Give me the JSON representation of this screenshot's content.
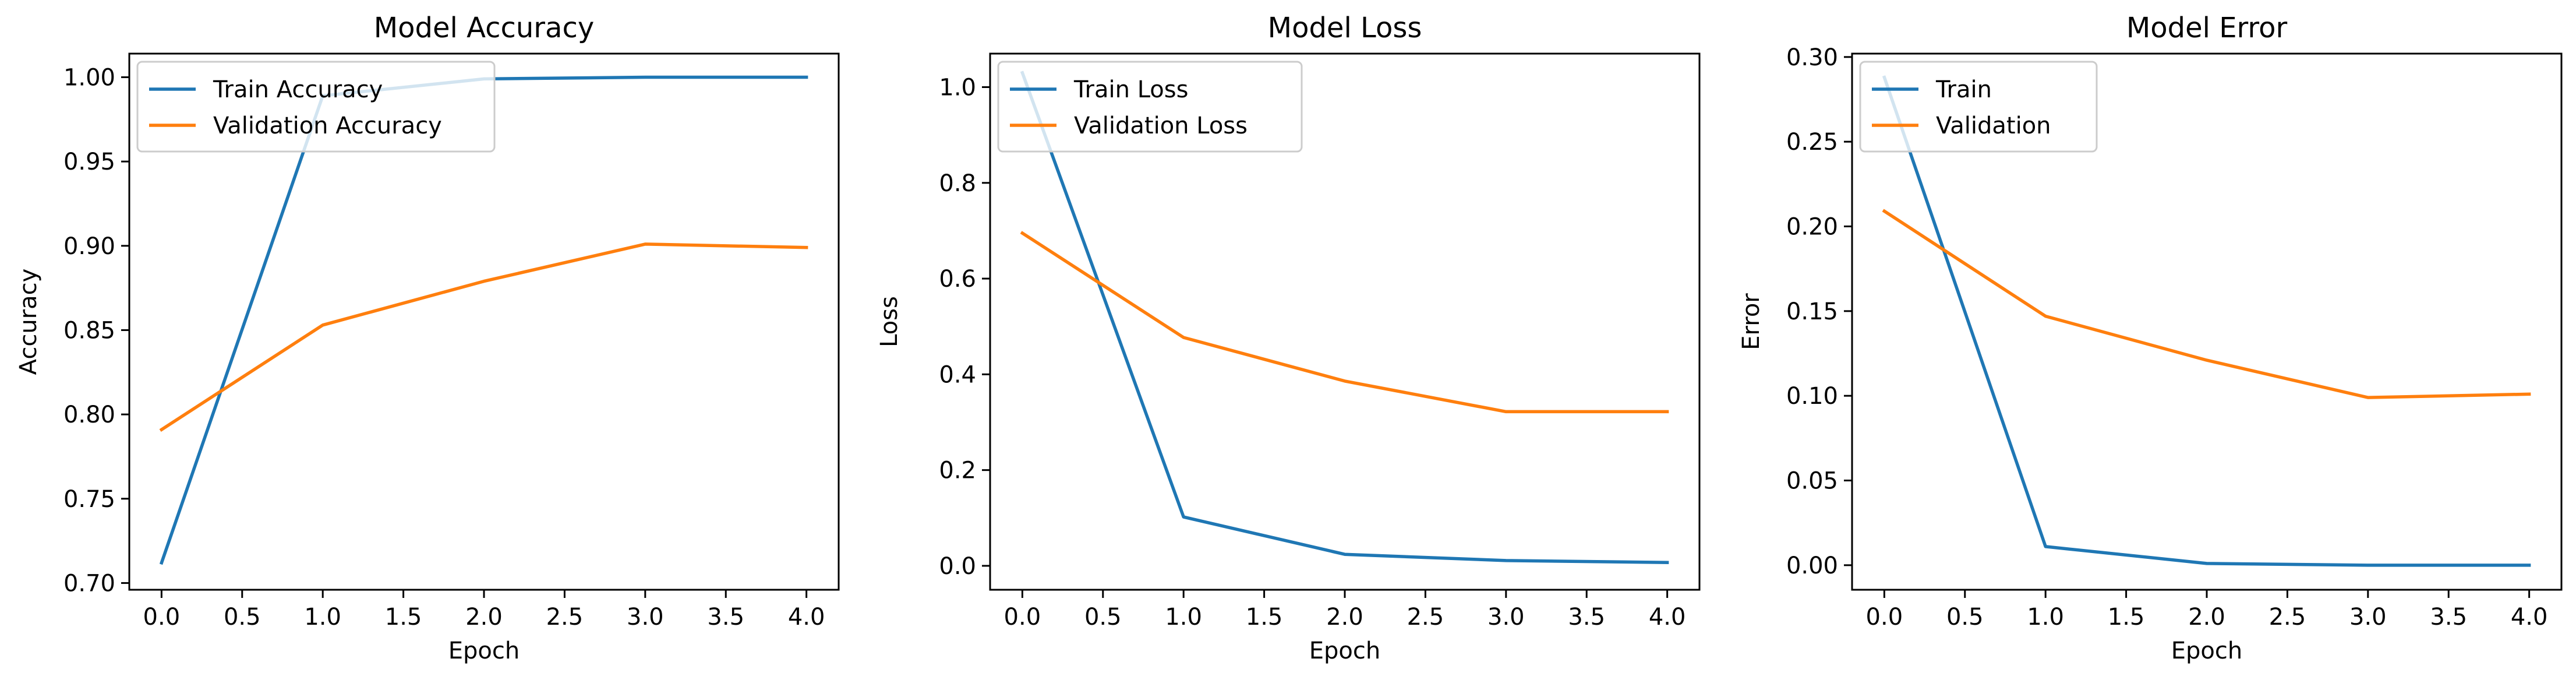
{
  "chart_data": [
    {
      "type": "line",
      "title": "Model Accuracy",
      "xlabel": "Epoch",
      "ylabel": "Accuracy",
      "xlim": [
        -0.2,
        4.2
      ],
      "ylim": [
        0.696,
        1.014
      ],
      "x_ticks": [
        "0.0",
        "0.5",
        "1.0",
        "1.5",
        "2.0",
        "2.5",
        "3.0",
        "3.5",
        "4.0"
      ],
      "y_ticks": [
        "0.70",
        "0.75",
        "0.80",
        "0.85",
        "0.90",
        "0.95",
        "1.00"
      ],
      "legend_position": "top-left",
      "x": [
        0,
        1,
        2,
        3,
        4
      ],
      "series": [
        {
          "name": "Train Accuracy",
          "color": "#1f77b4",
          "values": [
            0.712,
            0.989,
            0.999,
            1.0,
            1.0
          ]
        },
        {
          "name": "Validation Accuracy",
          "color": "#ff7f0e",
          "values": [
            0.791,
            0.853,
            0.879,
            0.901,
            0.899
          ]
        }
      ]
    },
    {
      "type": "line",
      "title": "Model Loss",
      "xlabel": "Epoch",
      "ylabel": "Loss",
      "xlim": [
        -0.2,
        4.2
      ],
      "ylim": [
        -0.05,
        1.07
      ],
      "x_ticks": [
        "0.0",
        "0.5",
        "1.0",
        "1.5",
        "2.0",
        "2.5",
        "3.0",
        "3.5",
        "4.0"
      ],
      "y_ticks": [
        "0.0",
        "0.2",
        "0.4",
        "0.6",
        "0.8",
        "1.0"
      ],
      "legend_position": "top-left",
      "x": [
        0,
        1,
        2,
        3,
        4
      ],
      "series": [
        {
          "name": "Train Loss",
          "color": "#1f77b4",
          "values": [
            1.03,
            0.102,
            0.024,
            0.011,
            0.007
          ]
        },
        {
          "name": "Validation Loss",
          "color": "#ff7f0e",
          "values": [
            0.695,
            0.477,
            0.386,
            0.322,
            0.322
          ]
        }
      ]
    },
    {
      "type": "line",
      "title": "Model Error",
      "xlabel": "Epoch",
      "ylabel": "Error",
      "xlim": [
        -0.2,
        4.2
      ],
      "ylim": [
        -0.0145,
        0.302
      ],
      "x_ticks": [
        "0.0",
        "0.5",
        "1.0",
        "1.5",
        "2.0",
        "2.5",
        "3.0",
        "3.5",
        "4.0"
      ],
      "y_ticks": [
        "0.00",
        "0.05",
        "0.10",
        "0.15",
        "0.20",
        "0.25",
        "0.30"
      ],
      "legend_position": "top-left",
      "x": [
        0,
        1,
        2,
        3,
        4
      ],
      "series": [
        {
          "name": "Train",
          "color": "#1f77b4",
          "values": [
            0.288,
            0.011,
            0.001,
            0.0,
            0.0
          ]
        },
        {
          "name": "Validation",
          "color": "#ff7f0e",
          "values": [
            0.209,
            0.147,
            0.121,
            0.099,
            0.101
          ]
        }
      ]
    }
  ]
}
